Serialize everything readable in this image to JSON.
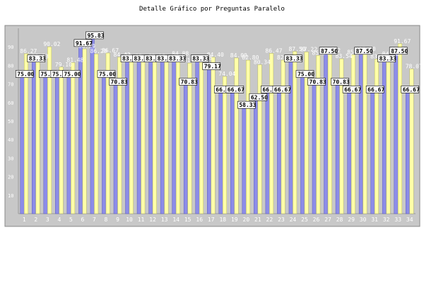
{
  "chart_data": {
    "type": "bar",
    "title": "Detalle Gráfico por Preguntas Paralelo",
    "xlabel": "",
    "ylabel": "",
    "ylim": [
      0,
      100
    ],
    "yticks": [
      10,
      20,
      30,
      40,
      50,
      60,
      70,
      80,
      90
    ],
    "categories": [
      "1",
      "2",
      "3",
      "4",
      "5",
      "6",
      "7",
      "8",
      "9",
      "10",
      "11",
      "12",
      "13",
      "14",
      "15",
      "16",
      "17",
      "18",
      "19",
      "20",
      "21",
      "22",
      "23",
      "24",
      "25",
      "26",
      "27",
      "28",
      "29",
      "30",
      "31",
      "32",
      "33",
      "34"
    ],
    "series": [
      {
        "color": "#8c8ce8",
        "label_style": "boxed",
        "values": [
          75.0,
          83.33,
          75.0,
          75.0,
          75.0,
          91.67,
          95.83,
          75.0,
          70.83,
          83.33,
          83.33,
          83.33,
          83.33,
          83.33,
          70.83,
          83.33,
          79.17,
          66.67,
          66.67,
          58.33,
          62.5,
          66.67,
          66.67,
          83.33,
          75.0,
          70.83,
          87.5,
          70.83,
          66.67,
          87.5,
          66.67,
          83.33,
          87.5,
          66.67
        ]
      },
      {
        "color": "#ffffa8",
        "label_style": "plain",
        "values": [
          86.27,
          83.33,
          90.02,
          79.1,
          81.48,
          88.89,
          86.2,
          86.67,
          84.43,
          83.33,
          82.95,
          83.33,
          82.72,
          84.88,
          81.25,
          82.38,
          84.4,
          74.04,
          84.0,
          82.8,
          80.34,
          86.47,
          82.83,
          87.5,
          87.22,
          85.34,
          86.72,
          83.54,
          85.68,
          87.5,
          83.37,
          84.68,
          91.67,
          78.07
        ]
      }
    ]
  }
}
